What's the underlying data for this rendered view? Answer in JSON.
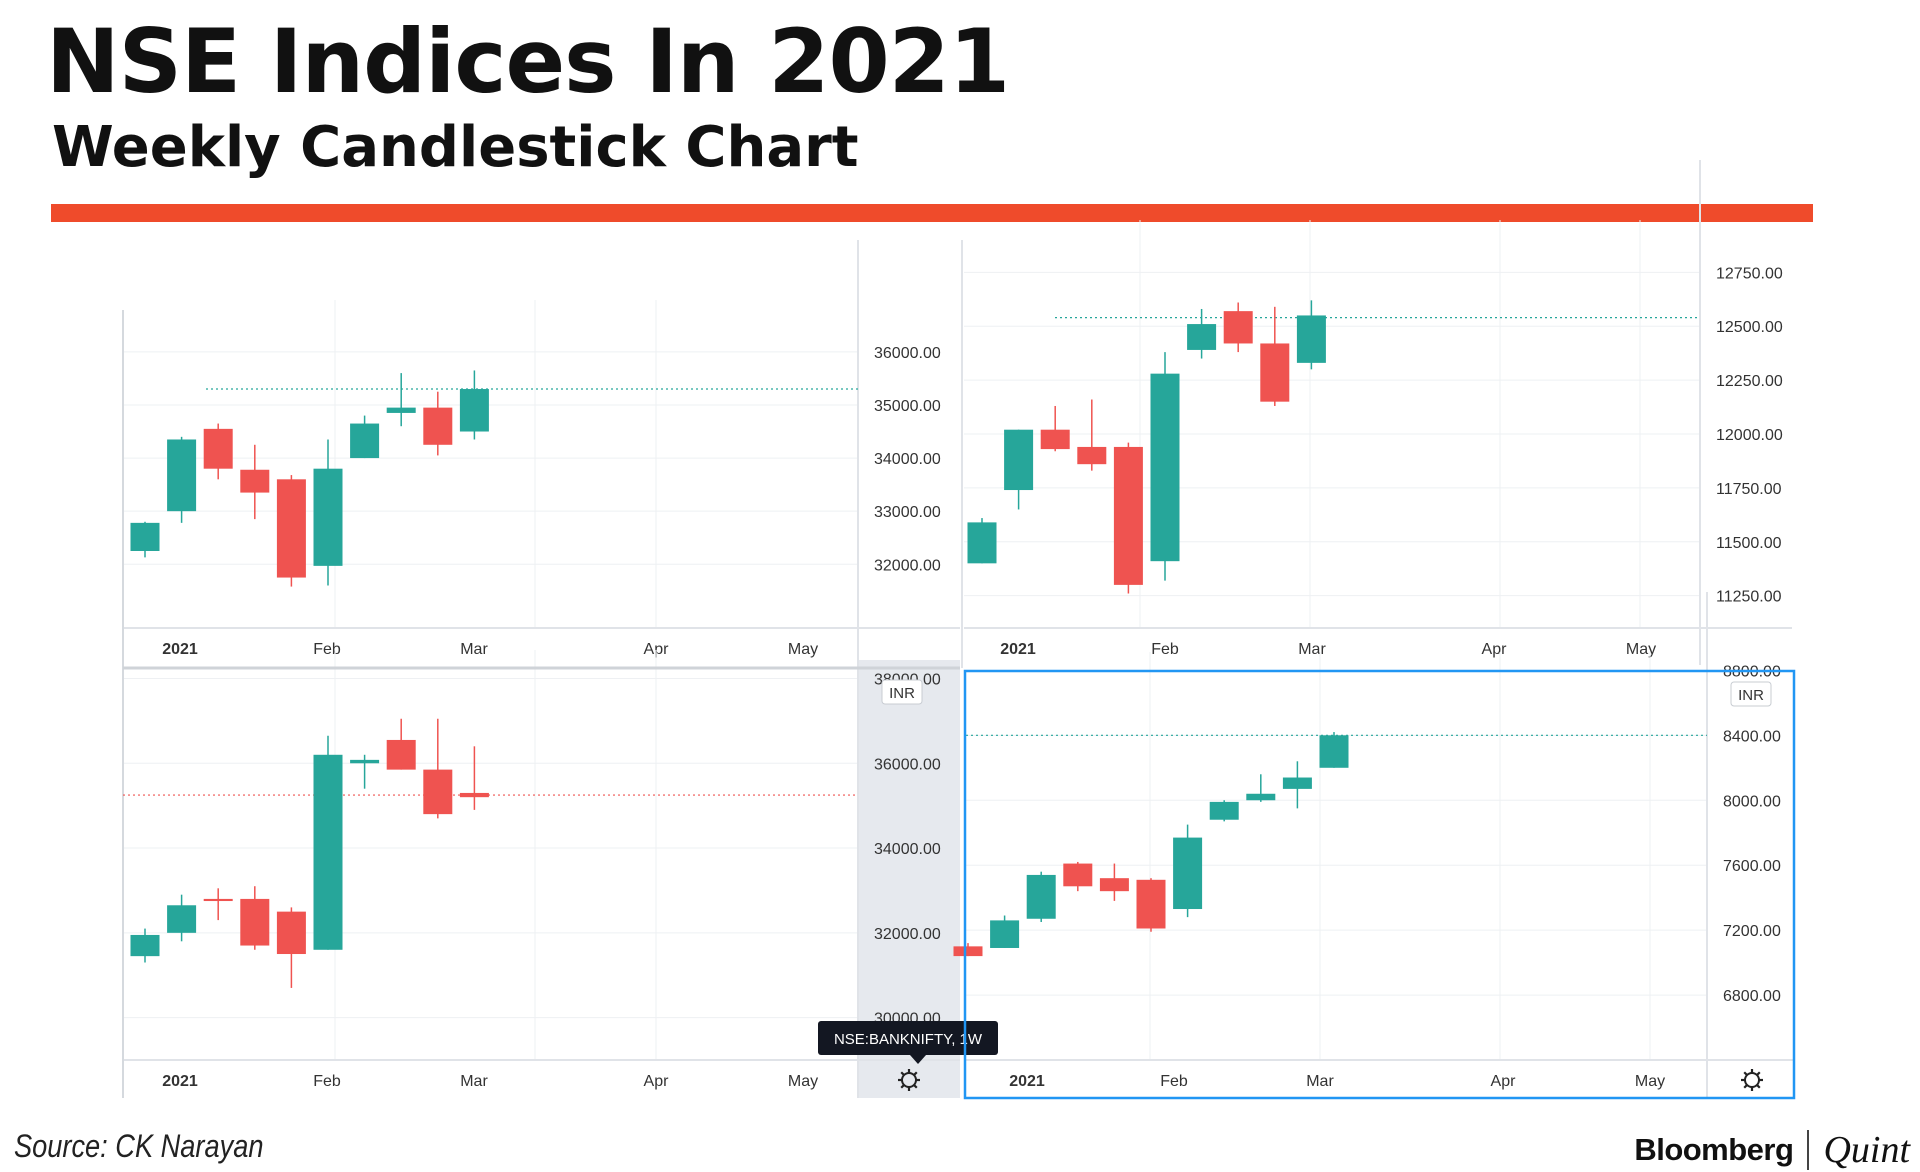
{
  "header": {
    "title": "NSE Indices In 2021",
    "subtitle": "Weekly Candlestick Chart"
  },
  "footer": {
    "source": "Source: CK Narayan",
    "brand_primary": "Bloomberg",
    "brand_secondary": "Quint"
  },
  "colors": {
    "up": "#26a69a",
    "down": "#ef5350",
    "accent": "#ef4b2b",
    "selection": "#2196f3"
  },
  "chart_data": [
    {
      "type": "candlestick",
      "panel": "top-left",
      "xlabels": [
        "2021",
        "Feb",
        "Mar",
        "Apr",
        "May"
      ],
      "yticks": [
        32000,
        33000,
        34000,
        35000,
        36000
      ],
      "ytick_labels": [
        "32000.00",
        "33000.00",
        "34000.00",
        "35000.00",
        "36000.00"
      ],
      "ylim": [
        30800,
        36600
      ],
      "reference_line": 35300,
      "candles": [
        {
          "o": 32250,
          "h": 32800,
          "l": 32130,
          "c": 32780
        },
        {
          "o": 33000,
          "h": 34400,
          "l": 32780,
          "c": 34350
        },
        {
          "o": 34550,
          "h": 34650,
          "l": 33600,
          "c": 33800
        },
        {
          "o": 33780,
          "h": 34250,
          "l": 32850,
          "c": 33350
        },
        {
          "o": 33600,
          "h": 33680,
          "l": 31580,
          "c": 31750
        },
        {
          "o": 31970,
          "h": 34350,
          "l": 31600,
          "c": 33800
        },
        {
          "o": 34000,
          "h": 34800,
          "l": 34000,
          "c": 34650
        },
        {
          "o": 34850,
          "h": 35600,
          "l": 34600,
          "c": 34950
        },
        {
          "o": 34950,
          "h": 35250,
          "l": 34050,
          "c": 34250
        },
        {
          "o": 34500,
          "h": 35650,
          "l": 34350,
          "c": 35300
        }
      ]
    },
    {
      "type": "candlestick",
      "panel": "top-right",
      "xlabels": [
        "2021",
        "Feb",
        "Mar",
        "Apr",
        "May"
      ],
      "yticks": [
        11250,
        11500,
        11750,
        12000,
        12250,
        12500,
        12750
      ],
      "ytick_labels": [
        "11250.00",
        "11500.00",
        "11750.00",
        "12000.00",
        "12250.00",
        "12500.00",
        "12750.00"
      ],
      "ylim": [
        11100,
        12900
      ],
      "reference_line": 12540,
      "candles": [
        {
          "o": 11400,
          "h": 11610,
          "l": 11400,
          "c": 11590
        },
        {
          "o": 11740,
          "h": 12020,
          "l": 11650,
          "c": 12020
        },
        {
          "o": 12020,
          "h": 12130,
          "l": 11920,
          "c": 11930
        },
        {
          "o": 11940,
          "h": 12160,
          "l": 11830,
          "c": 11860
        },
        {
          "o": 11940,
          "h": 11960,
          "l": 11260,
          "c": 11300
        },
        {
          "o": 11410,
          "h": 12380,
          "l": 11320,
          "c": 12280
        },
        {
          "o": 12390,
          "h": 12580,
          "l": 12350,
          "c": 12510
        },
        {
          "o": 12570,
          "h": 12610,
          "l": 12380,
          "c": 12420
        },
        {
          "o": 12420,
          "h": 12590,
          "l": 12130,
          "c": 12150
        },
        {
          "o": 12330,
          "h": 12620,
          "l": 12300,
          "c": 12550
        }
      ]
    },
    {
      "type": "candlestick",
      "panel": "bottom-left",
      "xlabels": [
        "2021",
        "Feb",
        "Mar",
        "Apr",
        "May"
      ],
      "yticks": [
        30000,
        32000,
        34000,
        36000,
        38000
      ],
      "ytick_labels": [
        "30000.00",
        "32000.00",
        "34000.00",
        "36000.00",
        "38000.00"
      ],
      "ylim": [
        29000,
        38200
      ],
      "reference_line": 35250,
      "currency_badge": "INR",
      "symbol_tooltip": "NSE:BANKNIFTY, 1W",
      "candles": [
        {
          "o": 31450,
          "h": 32100,
          "l": 31300,
          "c": 31950
        },
        {
          "o": 32000,
          "h": 32900,
          "l": 31800,
          "c": 32650
        },
        {
          "o": 32800,
          "h": 33050,
          "l": 32300,
          "c": 32750
        },
        {
          "o": 32800,
          "h": 33100,
          "l": 31600,
          "c": 31700
        },
        {
          "o": 32500,
          "h": 32600,
          "l": 30700,
          "c": 31500
        },
        {
          "o": 31600,
          "h": 36650,
          "l": 31600,
          "c": 36200
        },
        {
          "o": 36000,
          "h": 36200,
          "l": 35400,
          "c": 36080
        },
        {
          "o": 36550,
          "h": 37050,
          "l": 35850,
          "c": 35850
        },
        {
          "o": 35850,
          "h": 37050,
          "l": 34700,
          "c": 34800
        },
        {
          "o": 35300,
          "h": 36400,
          "l": 34900,
          "c": 35200
        }
      ]
    },
    {
      "type": "candlestick",
      "panel": "bottom-right",
      "xlabels": [
        "2021",
        "Feb",
        "Mar",
        "Apr",
        "May"
      ],
      "yticks": [
        6800,
        7200,
        7600,
        8000,
        8400,
        8800
      ],
      "ytick_labels": [
        "6800.00",
        "7200.00",
        "7600.00",
        "8000.00",
        "8400.00",
        "8800.00"
      ],
      "ylim": [
        6400,
        8790
      ],
      "reference_line": 8400,
      "currency_badge": "INR",
      "candles": [
        {
          "o": 7100,
          "h": 7120,
          "l": 7040,
          "c": 7040
        },
        {
          "o": 7090,
          "h": 7290,
          "l": 7090,
          "c": 7260
        },
        {
          "o": 7270,
          "h": 7560,
          "l": 7250,
          "c": 7540
        },
        {
          "o": 7610,
          "h": 7620,
          "l": 7440,
          "c": 7470
        },
        {
          "o": 7520,
          "h": 7610,
          "l": 7380,
          "c": 7440
        },
        {
          "o": 7510,
          "h": 7520,
          "l": 7190,
          "c": 7210
        },
        {
          "o": 7330,
          "h": 7850,
          "l": 7280,
          "c": 7770
        },
        {
          "o": 7880,
          "h": 8000,
          "l": 7870,
          "c": 7990
        },
        {
          "o": 8000,
          "h": 8160,
          "l": 7990,
          "c": 8040
        },
        {
          "o": 8070,
          "h": 8240,
          "l": 7950,
          "c": 8140
        },
        {
          "o": 8200,
          "h": 8420,
          "l": 8200,
          "c": 8400
        }
      ]
    }
  ]
}
